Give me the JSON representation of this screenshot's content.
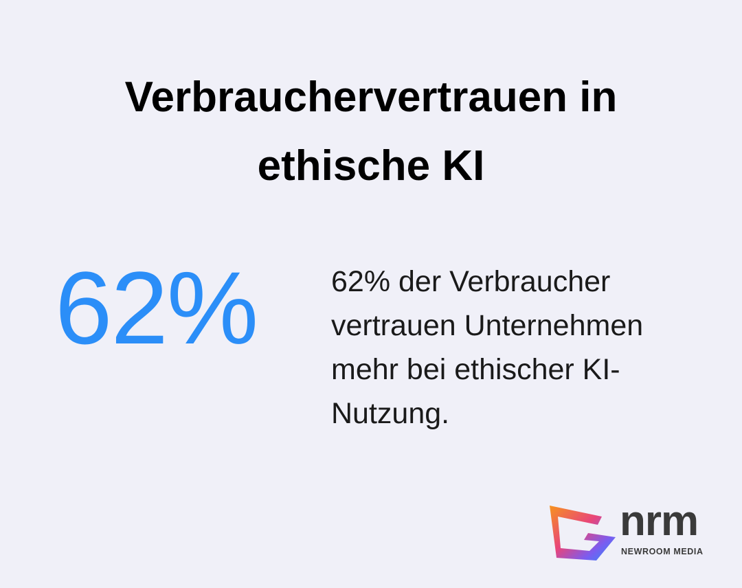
{
  "header": {
    "title": "Verbrauchervertrauen in ethische KI"
  },
  "stat": {
    "value": "62%",
    "description": "62% der Verbraucher vertrauen Unternehmen mehr bei ethischer KI-Nutzung."
  },
  "logo": {
    "name": "nrm",
    "subtitle": "NEWROOM MEDIA"
  }
}
